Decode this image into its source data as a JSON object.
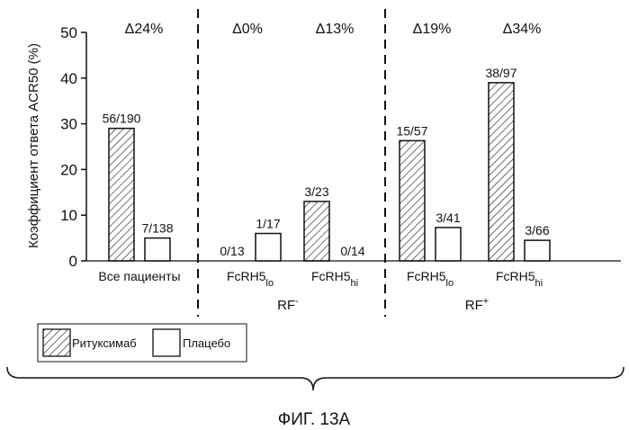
{
  "chart_data": {
    "type": "bar",
    "ylabel": "Коэффициент ответа ACR50 (%)",
    "ylim": [
      0,
      50
    ],
    "yticks": [
      "0",
      "10",
      "20",
      "30",
      "40",
      "50"
    ],
    "grid": false,
    "legend_position": "bottom-left",
    "series": [
      {
        "name": "Ритуксимаб",
        "pattern": "hatched"
      },
      {
        "name": "Плацебо",
        "pattern": "open"
      }
    ],
    "groups": [
      {
        "label": "Все пациенты",
        "sub": "",
        "delta": "Δ24%",
        "bars": [
          {
            "series": "Ритуксимаб",
            "value": 29,
            "label": "56/190"
          },
          {
            "series": "Плацебо",
            "value": 5,
            "label": "7/138"
          }
        ]
      },
      {
        "label": "FcRH5",
        "sub": "lo",
        "delta": "Δ0%",
        "bars": [
          {
            "series": "Ритуксимаб",
            "value": 0,
            "label": "0/13"
          },
          {
            "series": "Плацебо",
            "value": 6,
            "label": "1/17"
          }
        ]
      },
      {
        "label": "FcRH5",
        "sub": "hi",
        "delta": "Δ13%",
        "bars": [
          {
            "series": "Ритуксимаб",
            "value": 13,
            "label": "3/23"
          },
          {
            "series": "Плацебо",
            "value": 0,
            "label": "0/14"
          }
        ]
      },
      {
        "label": "FcRH5",
        "sub": "lo",
        "delta": "Δ19%",
        "bars": [
          {
            "series": "Ритуксимаб",
            "value": 26.3,
            "label": "15/57"
          },
          {
            "series": "Плацебо",
            "value": 7.3,
            "label": "3/41"
          }
        ]
      },
      {
        "label": "FcRH5",
        "sub": "hi",
        "delta": "Δ34%",
        "bars": [
          {
            "series": "Ритуксимаб",
            "value": 39,
            "label": "38/97"
          },
          {
            "series": "Плацебо",
            "value": 4.5,
            "label": "3/66"
          }
        ]
      }
    ],
    "sections": [
      {
        "label": "RF",
        "sup": "-"
      },
      {
        "label": "RF",
        "sup": "+"
      }
    ]
  },
  "figure_caption": "ФИГ. 13А"
}
